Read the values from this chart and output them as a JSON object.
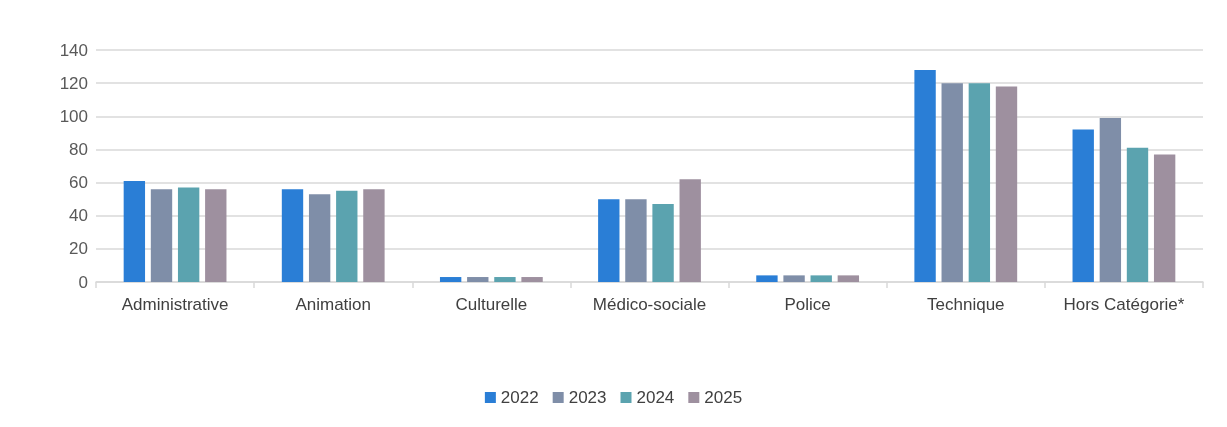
{
  "chart_data": {
    "type": "bar",
    "categories": [
      "Administrative",
      "Animation",
      "Culturelle",
      "Médico-sociale",
      "Police",
      "Technique",
      "Hors Catégorie*"
    ],
    "series": [
      {
        "name": "2022",
        "color": "#2a7ed6",
        "values": [
          61,
          56,
          3,
          50,
          4,
          128,
          92
        ]
      },
      {
        "name": "2023",
        "color": "#7f8ea8",
        "values": [
          56,
          53,
          3,
          50,
          4,
          120,
          99
        ]
      },
      {
        "name": "2024",
        "color": "#5ba3af",
        "values": [
          57,
          55,
          3,
          47,
          4,
          120,
          81
        ]
      },
      {
        "name": "2025",
        "color": "#9e909f",
        "values": [
          56,
          56,
          3,
          62,
          4,
          118,
          77
        ]
      }
    ],
    "ylim": [
      0,
      140
    ],
    "yticks": [
      0,
      20,
      40,
      60,
      80,
      100,
      120,
      140
    ],
    "grid": "y",
    "legend": "bottom"
  }
}
